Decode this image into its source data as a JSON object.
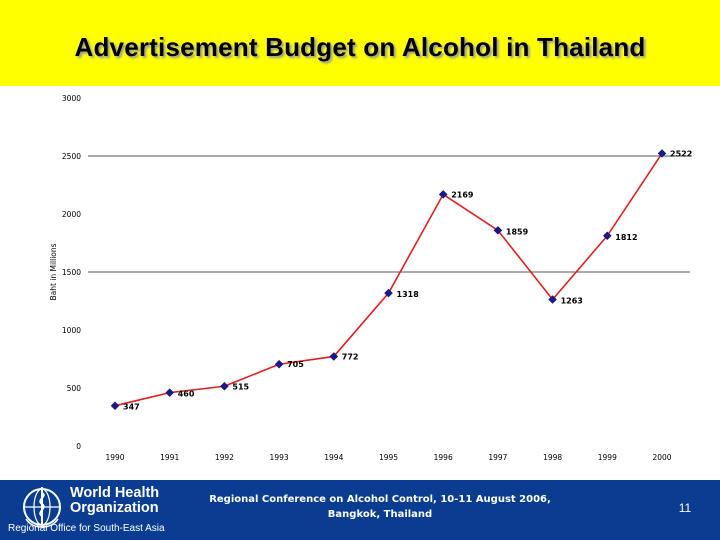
{
  "slide": {
    "title": "Advertisement Budget on Alcohol in Thailand",
    "page_number": "11"
  },
  "footer": {
    "org_name": "World Health Organization",
    "org_region": "Regional Office for South-East Asia",
    "conference": "Regional Conference on Alcohol Control, 10-11 August 2006, Bangkok, Thailand"
  },
  "colors": {
    "title_background": "#ffff00",
    "footer_background": "#0a3d91",
    "line": "#e02020",
    "marker": "#1a1a8c"
  },
  "chart_data": {
    "type": "line",
    "title": "",
    "xlabel": "",
    "ylabel": "Baht in Millions",
    "categories": [
      "1990",
      "1991",
      "1992",
      "1993",
      "1994",
      "1995",
      "1996",
      "1997",
      "1998",
      "1999",
      "2000"
    ],
    "values": [
      347,
      460,
      515,
      705,
      772,
      1318,
      2169,
      1859,
      1263,
      1812,
      2522
    ],
    "data_labels": [
      "347",
      "460",
      "515",
      "705",
      "772",
      "1318",
      "2169",
      "1859",
      "1263",
      "1812",
      "2522"
    ],
    "ylim": [
      0,
      3000
    ],
    "yticks": [
      "0",
      "500",
      "1000",
      "1500",
      "2000",
      "2500",
      "3000"
    ],
    "grid": "horizontal major lines at 1500 and 2500",
    "grid_values": [
      1500,
      2500
    ],
    "legend": "none"
  }
}
